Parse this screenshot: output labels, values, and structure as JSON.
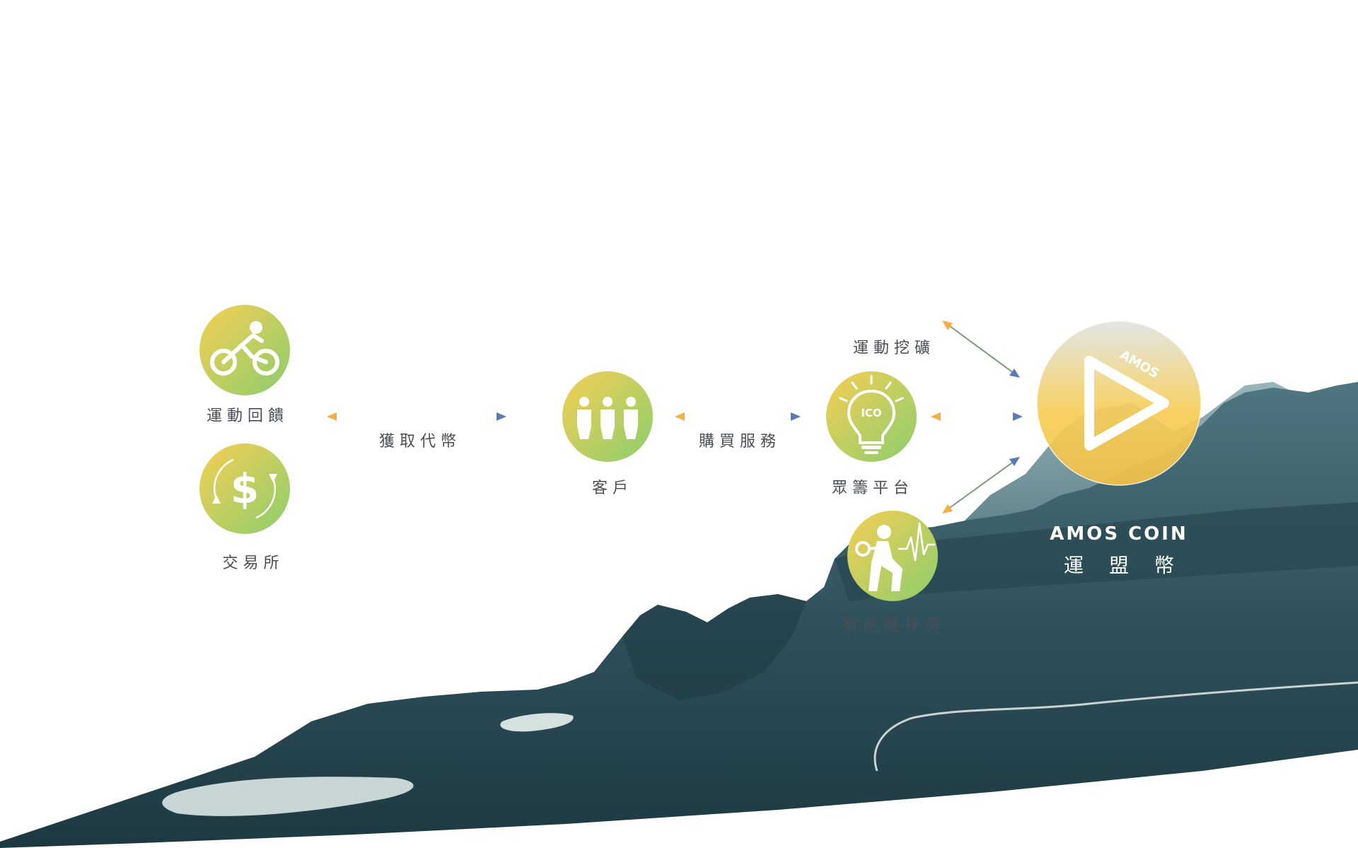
{
  "nodes": {
    "sport_feedback": "運動回饋",
    "exchange": "交易所",
    "customer": "客戶",
    "crowdfunding": "眾籌平台",
    "smart_gym": "智能健身房"
  },
  "edges": {
    "get_tokens": "獲取代幣",
    "buy_services": "購買服務",
    "sport_mining": "運動挖礦"
  },
  "brand": {
    "name_en": "AMOS COIN",
    "name_zh": "運盟幣",
    "logo_text": "AMOS"
  },
  "icons": {
    "sport_feedback": "cyclist-icon",
    "exchange": "dollar-exchange-icon",
    "customer": "people-icon",
    "crowdfunding": "ico-lightbulb-icon",
    "smart_gym": "fitness-heartbeat-icon"
  },
  "icon_text": {
    "ico": "ICO"
  },
  "colors": {
    "gradient_yellow": "#f6cf55",
    "gradient_green": "#8ccd6d",
    "arrow_orange": "#f5b041",
    "arrow_blue": "#5b7bb0",
    "mountain_dark": "#25404a",
    "mountain_mid": "#3c6470",
    "mountain_light": "#7fa3aa"
  }
}
